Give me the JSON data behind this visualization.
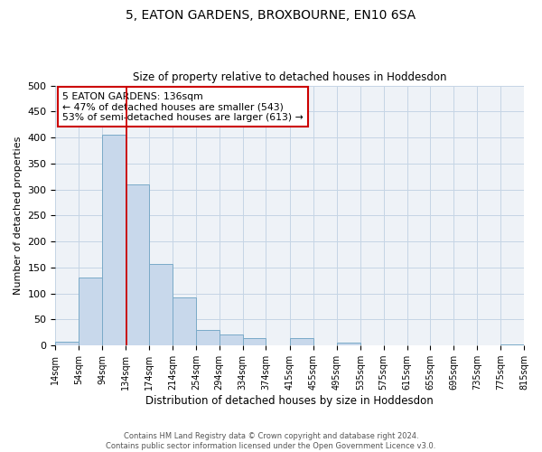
{
  "title": "5, EATON GARDENS, BROXBOURNE, EN10 6SA",
  "subtitle": "Size of property relative to detached houses in Hoddesdon",
  "xlabel": "Distribution of detached houses by size in Hoddesdon",
  "ylabel": "Number of detached properties",
  "bar_color": "#c8d8eb",
  "bar_edge_color": "#7aaac8",
  "grid_color": "#c5d5e5",
  "bg_color": "#eef2f7",
  "vline_value": 136,
  "vline_color": "#cc0000",
  "bin_edges": [
    14,
    54,
    94,
    134,
    174,
    214,
    254,
    294,
    334,
    374,
    415,
    455,
    495,
    535,
    575,
    615,
    655,
    695,
    735,
    775,
    815
  ],
  "bin_labels": [
    "14sqm",
    "54sqm",
    "94sqm",
    "134sqm",
    "174sqm",
    "214sqm",
    "254sqm",
    "294sqm",
    "334sqm",
    "374sqm",
    "415sqm",
    "455sqm",
    "495sqm",
    "535sqm",
    "575sqm",
    "615sqm",
    "655sqm",
    "695sqm",
    "735sqm",
    "775sqm",
    "815sqm"
  ],
  "bar_heights": [
    7,
    130,
    405,
    310,
    157,
    93,
    30,
    22,
    15,
    0,
    14,
    0,
    5,
    0,
    0,
    0,
    0,
    0,
    0,
    2
  ],
  "ylim": [
    0,
    500
  ],
  "yticks": [
    0,
    50,
    100,
    150,
    200,
    250,
    300,
    350,
    400,
    450,
    500
  ],
  "annotation_title": "5 EATON GARDENS: 136sqm",
  "annotation_line2": "← 47% of detached houses are smaller (543)",
  "annotation_line3": "53% of semi-detached houses are larger (613) →",
  "annotation_box_color": "#cc0000",
  "footer_line1": "Contains HM Land Registry data © Crown copyright and database right 2024.",
  "footer_line2": "Contains public sector information licensed under the Open Government Licence v3.0."
}
